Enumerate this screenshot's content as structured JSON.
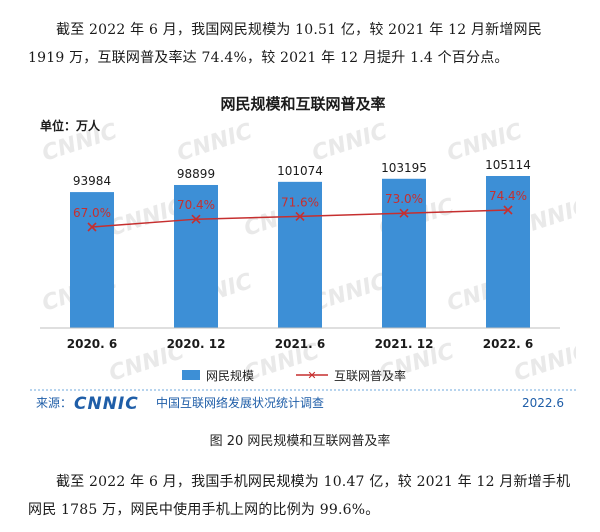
{
  "paragraphs": {
    "top": "截至 2022 年 6 月，我国网民规模为 10.51 亿，较 2021 年 12 月新增网民 1919 万，互联网普及率达 74.4%，较 2021 年 12 月提升 1.4 个百分点。",
    "bottom": "截至 2022 年 6 月，我国手机网民规模为 10.47 亿，较 2021 年 12 月新增手机网民 1785 万，网民中使用手机上网的比例为 99.6%。"
  },
  "figure": {
    "caption": "图 20  网民规模和互联网普及率",
    "source_label": "来源：",
    "source_name": "中国互联网络发展状况统计调查",
    "source_date": "2022.6",
    "logo_text": "CNNIC",
    "watermark_text": "CNNIC"
  },
  "chart_data": {
    "type": "bar",
    "title": "网民规模和互联网普及率",
    "unit_label": "单位：万人",
    "categories": [
      "2020. 6",
      "2020. 12",
      "2021. 6",
      "2021. 12",
      "2022. 6"
    ],
    "series": [
      {
        "name": "网民规模",
        "type": "bar",
        "values": [
          93984,
          98899,
          101074,
          103195,
          105114
        ],
        "labels": [
          "93984",
          "98899",
          "101074",
          "103195",
          "105114"
        ],
        "color": "#3d8fd6"
      },
      {
        "name": "互联网普及率",
        "type": "line",
        "values": [
          67.0,
          70.4,
          71.6,
          73.0,
          74.4
        ],
        "labels": [
          "67.0%",
          "70.4%",
          "71.6%",
          "73.0%",
          "74.4%"
        ],
        "color": "#c62f2f"
      }
    ],
    "bar_ylim": [
      0,
      165000
    ],
    "line_ylim": [
      30,
      80
    ],
    "legend_position": "bottom-center",
    "grid": false
  }
}
